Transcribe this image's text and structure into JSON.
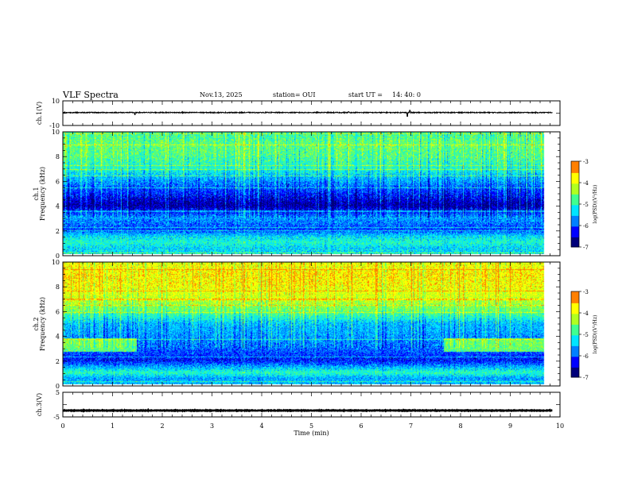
{
  "header": {
    "title": "VLF Spectra",
    "date": "Nov.13, 2025",
    "station": "station= OUI",
    "start_label": "start  UT  =",
    "start_time": "14: 40: 0"
  },
  "chart_data": {
    "type": "heatmap",
    "xlabel": "Time  (min)",
    "xlim": [
      0,
      10
    ],
    "xticks": [
      "0",
      "1",
      "2",
      "3",
      "4",
      "5",
      "6",
      "7",
      "8",
      "9",
      "10"
    ],
    "data_end_min": 9.85,
    "panels": [
      {
        "id": "ch1-waveform",
        "type": "line",
        "ylabel": "ch.1(V)",
        "ylim": [
          -10,
          10
        ],
        "yticks": [
          "10",
          "-10"
        ],
        "baseline": 0.5,
        "noise": 0.35,
        "spikes": [
          {
            "t": 6.93,
            "v": -2.6
          },
          {
            "t": 6.98,
            "v": 2.3
          },
          {
            "t": 1.45,
            "v": -1.2
          },
          {
            "t": 5.75,
            "v": 1.2
          }
        ]
      },
      {
        "id": "ch1-spectrogram",
        "type": "heatmap",
        "ylabel": "ch.1\nFrequency  (kHz)",
        "ylim": [
          0,
          10
        ],
        "yticks": [
          "0",
          "2",
          "4",
          "6",
          "8",
          "10"
        ],
        "colorbar": {
          "label": "log(PSD)(V²/Hz)",
          "range": [
            -7,
            -3
          ],
          "ticks": [
            "-3",
            "-4",
            "-5",
            "-6",
            "-7"
          ],
          "colors": [
            "#00007a",
            "#0000ff",
            "#0080ff",
            "#00e5ff",
            "#40ff90",
            "#b0ff20",
            "#ffff00",
            "#ff8000",
            "#e00000",
            "#ffffff"
          ]
        },
        "profile": {
          "freqs_khz": [
            0,
            0.5,
            1,
            1.5,
            2,
            3,
            4,
            5,
            6,
            7,
            8,
            9,
            10
          ],
          "mean_logpsd": [
            -5.2,
            -5.3,
            -5.0,
            -5.3,
            -6.0,
            -5.6,
            -6.6,
            -6.1,
            -5.6,
            -5.0,
            -4.7,
            -4.6,
            -4.8
          ]
        }
      },
      {
        "id": "ch2-spectrogram",
        "type": "heatmap",
        "ylabel": "ch.2\nFrequency  (kHz)",
        "ylim": [
          0,
          10
        ],
        "yticks": [
          "0",
          "2",
          "4",
          "6",
          "8",
          "10"
        ],
        "colorbar": {
          "label": "log(PSD)(V²/Hz)",
          "range": [
            -7,
            -3
          ],
          "ticks": [
            "-3",
            "-4",
            "-5",
            "-6",
            "-7"
          ],
          "colors": [
            "#00007a",
            "#0000ff",
            "#0080ff",
            "#00e5ff",
            "#40ff90",
            "#b0ff20",
            "#ffff00",
            "#ff8000",
            "#e00000",
            "#ffffff"
          ]
        },
        "profile": {
          "freqs_khz": [
            0,
            0.5,
            1,
            1.5,
            2,
            3,
            4,
            5,
            6,
            7,
            8,
            9,
            10
          ],
          "mean_logpsd": [
            -5.4,
            -5.6,
            -4.9,
            -5.6,
            -6.2,
            -5.8,
            -5.6,
            -5.4,
            -4.6,
            -4.1,
            -3.8,
            -3.7,
            -3.9
          ]
        },
        "band_enhancement": {
          "freq_khz": [
            2.7,
            3.8
          ],
          "time_min": [
            [
              0,
              1.5
            ],
            [
              7.8,
              9.85
            ]
          ],
          "delta_logpsd": 1.2
        }
      },
      {
        "id": "ch3-waveform",
        "type": "line",
        "ylabel": "ch.3(V)",
        "ylim": [
          -5,
          5
        ],
        "yticks": [
          "5",
          "-5"
        ],
        "baseline": -2.4,
        "noise": 0.1,
        "spikes": []
      }
    ]
  }
}
